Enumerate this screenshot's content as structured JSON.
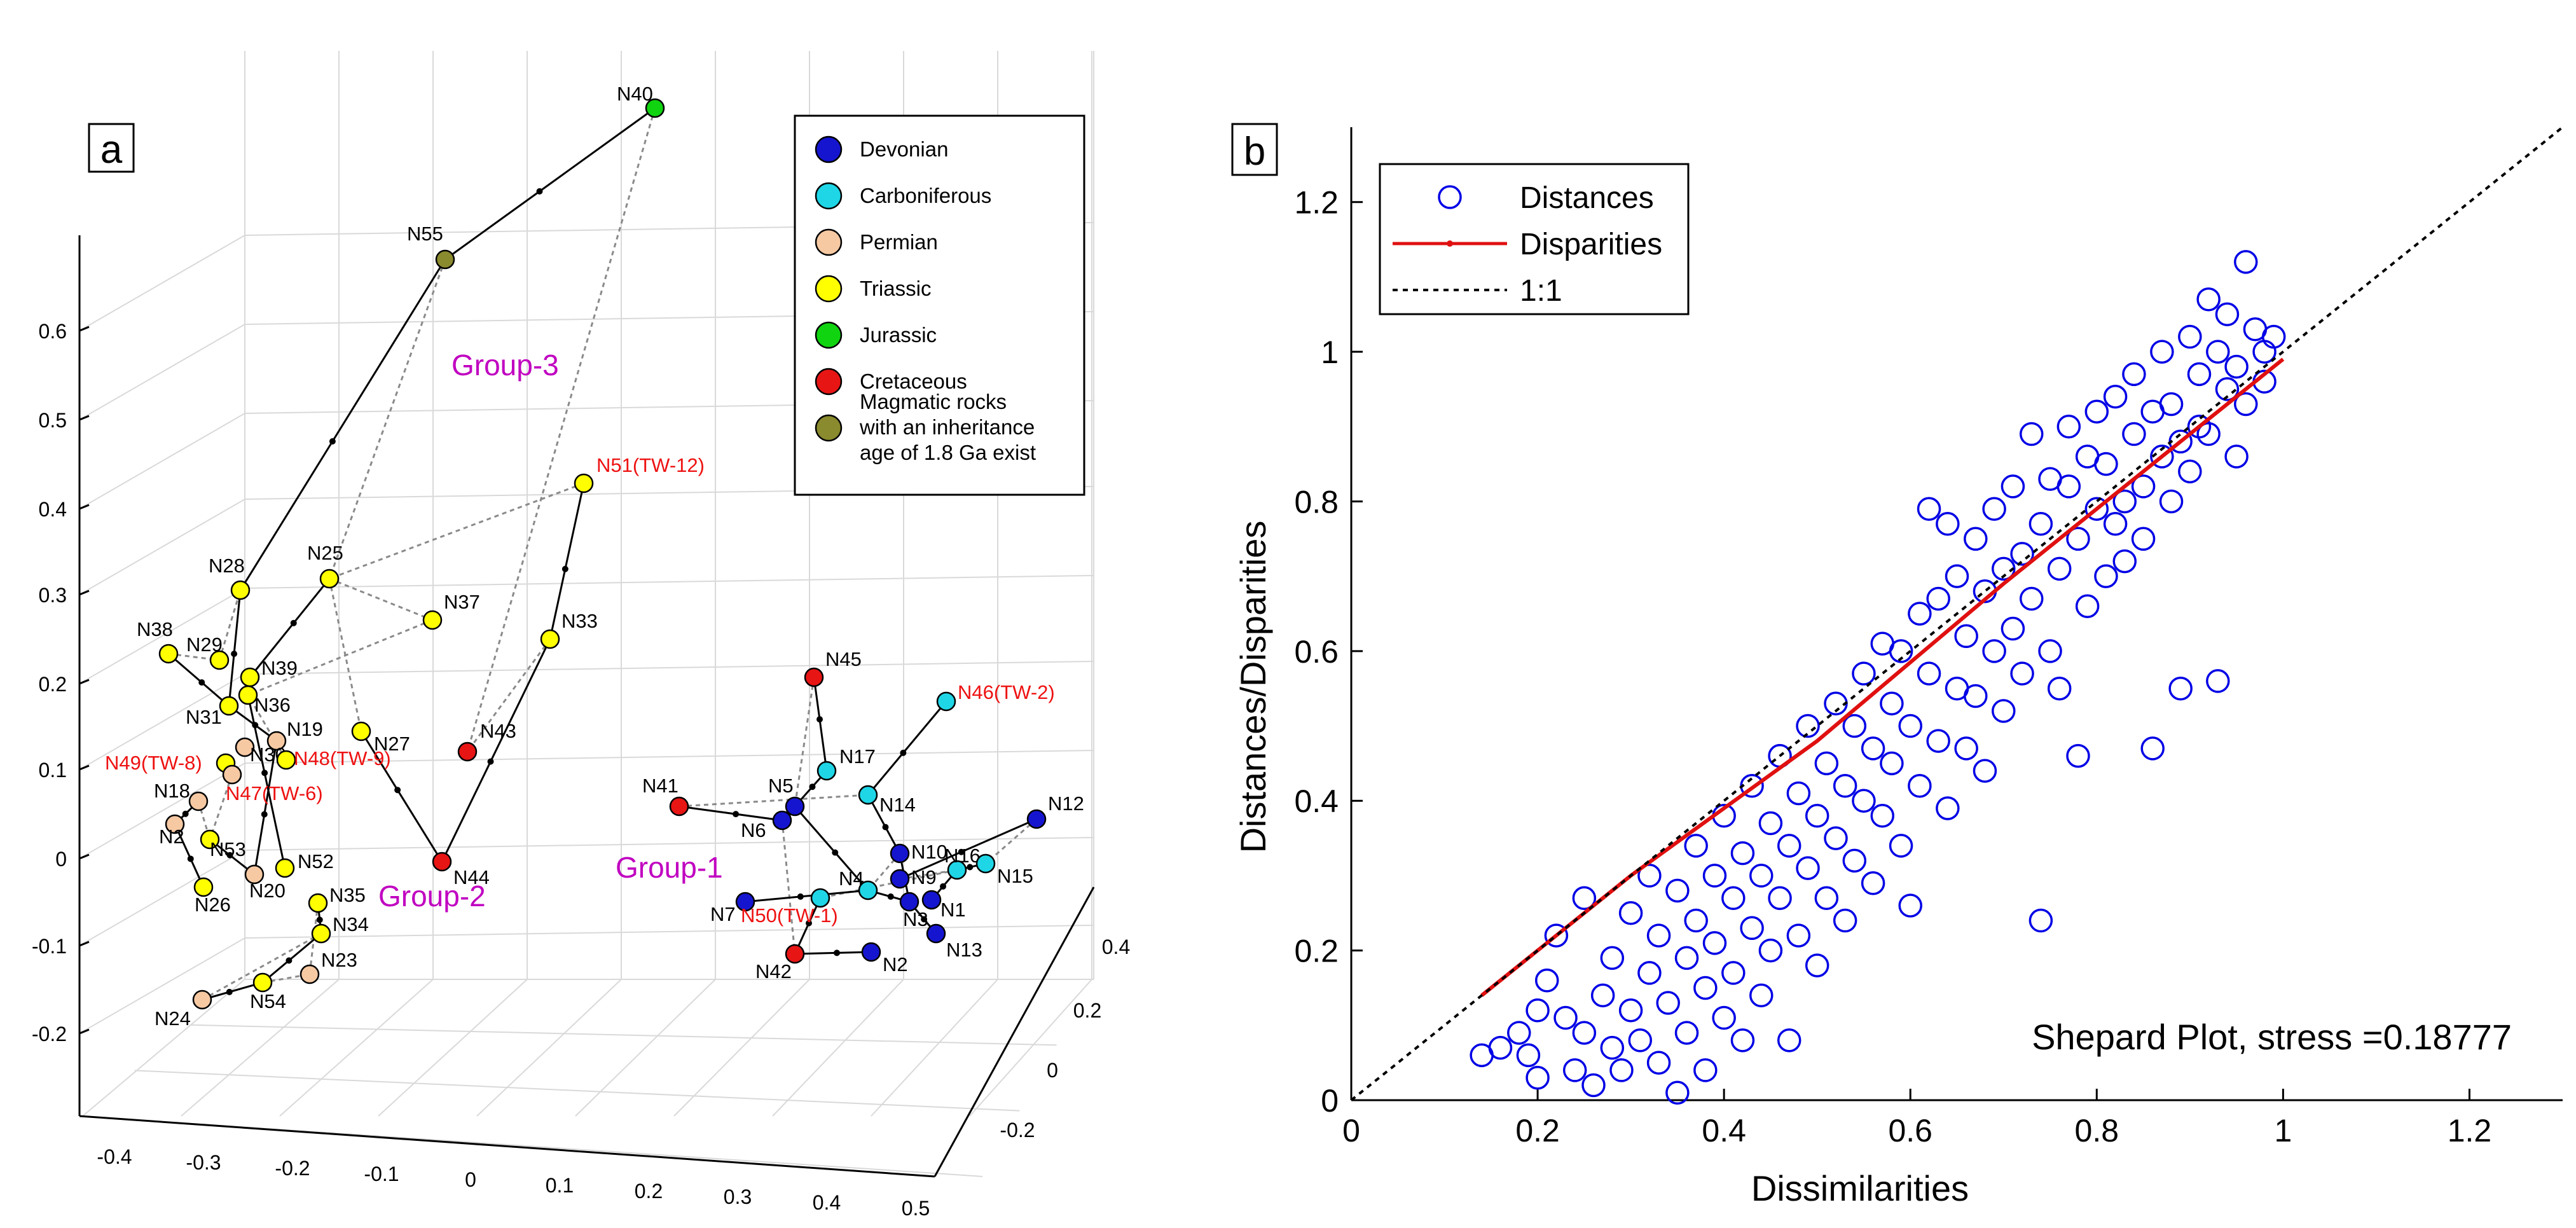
{
  "panel_a": {
    "label": "a",
    "chart_type": "3d-network-scatter",
    "z_ticks": [
      "0.6",
      "0.5",
      "0.4",
      "0.3",
      "0.2",
      "0.1",
      "0",
      "-0.1",
      "-0.2"
    ],
    "x_ticks": [
      "-0.4",
      "-0.3",
      "-0.2",
      "-0.1",
      "0",
      "0.1",
      "0.2",
      "0.3",
      "0.4",
      "0.5"
    ],
    "y_ticks": [
      "-0.2",
      "0",
      "0.2",
      "0.4"
    ],
    "legend": [
      {
        "name": "Devonian",
        "color": "#1515d0"
      },
      {
        "name": "Carboniferous",
        "color": "#1fd6e6"
      },
      {
        "name": "Permian",
        "color": "#f6c9a3"
      },
      {
        "name": "Triassic",
        "color": "#ffff00"
      },
      {
        "name": "Jurassic",
        "color": "#11d411"
      },
      {
        "name": "Cretaceous",
        "color": "#e81515"
      },
      {
        "name": "Magmatic rocks with an inheritance age of 1.8 Ga exist",
        "lines": [
          "Magmatic rocks",
          "with an inheritance",
          "age of 1.8 Ga exist"
        ],
        "color": "#8a8a2e"
      }
    ],
    "groups": [
      {
        "name": "Group-3",
        "color": "#c000c0"
      },
      {
        "name": "Group-2",
        "color": "#c000c0"
      },
      {
        "name": "Group-1",
        "color": "#c000c0"
      }
    ],
    "nodes": [
      {
        "id": "N40",
        "period": "Jurassic"
      },
      {
        "id": "N55",
        "period": "Magmatic"
      },
      {
        "id": "N51(TW-12)",
        "period": "Triassic",
        "highlight": true
      },
      {
        "id": "N25",
        "period": "Triassic"
      },
      {
        "id": "N37",
        "period": "Triassic"
      },
      {
        "id": "N33",
        "period": "Triassic"
      },
      {
        "id": "N28",
        "period": "Triassic"
      },
      {
        "id": "N38",
        "period": "Triassic"
      },
      {
        "id": "N29",
        "period": "Triassic"
      },
      {
        "id": "N39",
        "period": "Triassic"
      },
      {
        "id": "N36",
        "period": "Triassic"
      },
      {
        "id": "N31",
        "period": "Triassic"
      },
      {
        "id": "N19",
        "period": "Permian"
      },
      {
        "id": "N30",
        "period": "Permian"
      },
      {
        "id": "N48(TW-9)",
        "period": "Triassic",
        "highlight": true
      },
      {
        "id": "N49(TW-8)",
        "period": "Triassic",
        "highlight": true
      },
      {
        "id": "N47(TW-6)",
        "period": "Permian",
        "highlight": true
      },
      {
        "id": "N27",
        "period": "Triassic"
      },
      {
        "id": "N43",
        "period": "Cretaceous"
      },
      {
        "id": "N44",
        "period": "Cretaceous"
      },
      {
        "id": "N18",
        "period": "Permian"
      },
      {
        "id": "N53",
        "period": "Triassic"
      },
      {
        "id": "N2",
        "period": "Permian"
      },
      {
        "id": "N26",
        "period": "Triassic"
      },
      {
        "id": "N20",
        "period": "Permian"
      },
      {
        "id": "N52",
        "period": "Triassic"
      },
      {
        "id": "N35",
        "period": "Triassic"
      },
      {
        "id": "N34",
        "period": "Triassic"
      },
      {
        "id": "N23",
        "period": "Permian"
      },
      {
        "id": "N54",
        "period": "Triassic"
      },
      {
        "id": "N24",
        "period": "Permian"
      },
      {
        "id": "N45",
        "period": "Cretaceous"
      },
      {
        "id": "N46(TW-2)",
        "period": "Carboniferous",
        "highlight": true
      },
      {
        "id": "N17",
        "period": "Carboniferous"
      },
      {
        "id": "N5",
        "period": "Devonian"
      },
      {
        "id": "N41",
        "period": "Cretaceous"
      },
      {
        "id": "N6",
        "period": "Devonian"
      },
      {
        "id": "N14",
        "period": "Carboniferous"
      },
      {
        "id": "N12",
        "period": "Devonian"
      },
      {
        "id": "N10",
        "period": "Devonian"
      },
      {
        "id": "N16",
        "period": "Carboniferous"
      },
      {
        "id": "N9",
        "period": "Devonian"
      },
      {
        "id": "N15",
        "period": "Carboniferous"
      },
      {
        "id": "N4",
        "period": "Carboniferous"
      },
      {
        "id": "N7",
        "period": "Devonian"
      },
      {
        "id": "N50(TW-1)",
        "period": "Carboniferous",
        "highlight": true
      },
      {
        "id": "N3",
        "period": "Devonian"
      },
      {
        "id": "N1",
        "period": "Devonian"
      },
      {
        "id": "N13",
        "period": "Devonian"
      },
      {
        "id": "N42",
        "period": "Cretaceous"
      },
      {
        "id": "N2b",
        "label": "N2",
        "period": "Devonian"
      }
    ],
    "solid_links": [
      [
        "N40",
        "N55"
      ],
      [
        "N55",
        "N28"
      ],
      [
        "N51(TW-12)",
        "N33"
      ],
      [
        "N33",
        "N44"
      ],
      [
        "N44",
        "N27"
      ],
      [
        "N28",
        "N31"
      ],
      [
        "N39",
        "N25"
      ],
      [
        "N38",
        "N31"
      ],
      [
        "N49(TW-8)",
        "N47(TW-6)"
      ],
      [
        "N31",
        "N19"
      ],
      [
        "N19",
        "N20"
      ],
      [
        "N20",
        "N53"
      ],
      [
        "N18",
        "N2"
      ],
      [
        "N2",
        "N26"
      ],
      [
        "N52",
        "N36"
      ],
      [
        "N35",
        "N34"
      ],
      [
        "N34",
        "N54"
      ],
      [
        "N54",
        "N24"
      ],
      [
        "N41",
        "N6"
      ],
      [
        "N6",
        "N5"
      ],
      [
        "N5",
        "N17"
      ],
      [
        "N17",
        "N45"
      ],
      [
        "N5",
        "N4"
      ],
      [
        "N4",
        "N7"
      ],
      [
        "N46(TW-2)",
        "N14"
      ],
      [
        "N14",
        "N10"
      ],
      [
        "N10",
        "N3"
      ],
      [
        "N3",
        "N13"
      ],
      [
        "N12",
        "N9"
      ],
      [
        "N16",
        "N1"
      ],
      [
        "N4",
        "N3"
      ],
      [
        "N42",
        "N50(TW-1)"
      ],
      [
        "N42",
        "N2b"
      ],
      [
        "N15",
        "N16"
      ]
    ],
    "dashed_links": [
      [
        "N40",
        "N43"
      ],
      [
        "N55",
        "N25"
      ],
      [
        "N51(TW-12)",
        "N25"
      ],
      [
        "N25",
        "N37"
      ],
      [
        "N25",
        "N27"
      ],
      [
        "N37",
        "N36"
      ],
      [
        "N33",
        "N43"
      ],
      [
        "N38",
        "N29"
      ],
      [
        "N48(TW-9)",
        "N36"
      ],
      [
        "N47(TW-6)",
        "N53"
      ],
      [
        "N18",
        "N53"
      ],
      [
        "N35",
        "N23"
      ],
      [
        "N54",
        "N23"
      ],
      [
        "N45",
        "N5"
      ],
      [
        "N41",
        "N14"
      ],
      [
        "N6",
        "N42"
      ],
      [
        "N9",
        "N16"
      ],
      [
        "N12",
        "N15"
      ],
      [
        "N10",
        "N4"
      ],
      [
        "N16",
        "N50(TW-1)"
      ],
      [
        "N29",
        "N28"
      ],
      [
        "N24",
        "N34"
      ]
    ]
  },
  "panel_b": {
    "label": "b",
    "annotation": "Shepard Plot, stress =0.18777",
    "legend": [
      {
        "name": "Distances",
        "style": "circle",
        "color": "#0000e6"
      },
      {
        "name": "Disparities",
        "style": "line-marker",
        "color": "#e01010"
      },
      {
        "name": "1:1",
        "style": "dotted",
        "color": "#000000"
      }
    ]
  },
  "chart_data": {
    "type": "scatter",
    "title": "Shepard Plot, stress =0.18777",
    "xlabel": "Dissimilarities",
    "ylabel": "Distances/Disparities",
    "xlim": [
      0,
      1.3
    ],
    "ylim": [
      0,
      1.3
    ],
    "xticks": [
      0,
      0.2,
      0.4,
      0.6,
      0.8,
      1,
      1.2
    ],
    "yticks": [
      0,
      0.2,
      0.4,
      0.6,
      0.8,
      1,
      1.2
    ],
    "stress": 0.18777,
    "series": [
      {
        "name": "Distances",
        "type": "scatter",
        "color": "#0000e6",
        "points": [
          [
            0.14,
            0.06
          ],
          [
            0.16,
            0.07
          ],
          [
            0.18,
            0.09
          ],
          [
            0.19,
            0.06
          ],
          [
            0.2,
            0.12
          ],
          [
            0.2,
            0.03
          ],
          [
            0.21,
            0.16
          ],
          [
            0.22,
            0.22
          ],
          [
            0.23,
            0.11
          ],
          [
            0.24,
            0.04
          ],
          [
            0.25,
            0.27
          ],
          [
            0.25,
            0.09
          ],
          [
            0.26,
            0.02
          ],
          [
            0.27,
            0.14
          ],
          [
            0.28,
            0.07
          ],
          [
            0.28,
            0.19
          ],
          [
            0.29,
            0.04
          ],
          [
            0.3,
            0.12
          ],
          [
            0.3,
            0.25
          ],
          [
            0.31,
            0.08
          ],
          [
            0.32,
            0.17
          ],
          [
            0.32,
            0.3
          ],
          [
            0.33,
            0.05
          ],
          [
            0.33,
            0.22
          ],
          [
            0.34,
            0.13
          ],
          [
            0.35,
            0.01
          ],
          [
            0.35,
            0.28
          ],
          [
            0.36,
            0.19
          ],
          [
            0.36,
            0.09
          ],
          [
            0.37,
            0.34
          ],
          [
            0.37,
            0.24
          ],
          [
            0.38,
            0.15
          ],
          [
            0.38,
            0.04
          ],
          [
            0.39,
            0.3
          ],
          [
            0.39,
            0.21
          ],
          [
            0.4,
            0.11
          ],
          [
            0.4,
            0.38
          ],
          [
            0.41,
            0.27
          ],
          [
            0.41,
            0.17
          ],
          [
            0.42,
            0.33
          ],
          [
            0.42,
            0.08
          ],
          [
            0.43,
            0.23
          ],
          [
            0.43,
            0.42
          ],
          [
            0.44,
            0.3
          ],
          [
            0.44,
            0.14
          ],
          [
            0.45,
            0.37
          ],
          [
            0.45,
            0.2
          ],
          [
            0.46,
            0.46
          ],
          [
            0.46,
            0.27
          ],
          [
            0.47,
            0.08
          ],
          [
            0.47,
            0.34
          ],
          [
            0.48,
            0.41
          ],
          [
            0.48,
            0.22
          ],
          [
            0.49,
            0.5
          ],
          [
            0.49,
            0.31
          ],
          [
            0.5,
            0.38
          ],
          [
            0.5,
            0.18
          ],
          [
            0.51,
            0.45
          ],
          [
            0.51,
            0.27
          ],
          [
            0.52,
            0.53
          ],
          [
            0.52,
            0.35
          ],
          [
            0.53,
            0.42
          ],
          [
            0.53,
            0.24
          ],
          [
            0.54,
            0.5
          ],
          [
            0.54,
            0.32
          ],
          [
            0.55,
            0.57
          ],
          [
            0.55,
            0.4
          ],
          [
            0.56,
            0.47
          ],
          [
            0.56,
            0.29
          ],
          [
            0.57,
            0.61
          ],
          [
            0.57,
            0.38
          ],
          [
            0.58,
            0.53
          ],
          [
            0.58,
            0.45
          ],
          [
            0.59,
            0.34
          ],
          [
            0.59,
            0.6
          ],
          [
            0.6,
            0.5
          ],
          [
            0.6,
            0.26
          ],
          [
            0.61,
            0.65
          ],
          [
            0.61,
            0.42
          ],
          [
            0.62,
            0.57
          ],
          [
            0.62,
            0.79
          ],
          [
            0.63,
            0.48
          ],
          [
            0.63,
            0.67
          ],
          [
            0.64,
            0.39
          ],
          [
            0.64,
            0.77
          ],
          [
            0.65,
            0.55
          ],
          [
            0.65,
            0.7
          ],
          [
            0.66,
            0.47
          ],
          [
            0.66,
            0.62
          ],
          [
            0.67,
            0.75
          ],
          [
            0.67,
            0.54
          ],
          [
            0.68,
            0.68
          ],
          [
            0.68,
            0.44
          ],
          [
            0.69,
            0.6
          ],
          [
            0.69,
            0.79
          ],
          [
            0.7,
            0.71
          ],
          [
            0.7,
            0.52
          ],
          [
            0.71,
            0.63
          ],
          [
            0.71,
            0.82
          ],
          [
            0.72,
            0.73
          ],
          [
            0.72,
            0.57
          ],
          [
            0.73,
            0.67
          ],
          [
            0.73,
            0.89
          ],
          [
            0.74,
            0.24
          ],
          [
            0.74,
            0.77
          ],
          [
            0.75,
            0.6
          ],
          [
            0.75,
            0.83
          ],
          [
            0.76,
            0.71
          ],
          [
            0.76,
            0.55
          ],
          [
            0.77,
            0.82
          ],
          [
            0.77,
            0.9
          ],
          [
            0.78,
            0.46
          ],
          [
            0.78,
            0.75
          ],
          [
            0.79,
            0.66
          ],
          [
            0.79,
            0.86
          ],
          [
            0.8,
            0.79
          ],
          [
            0.8,
            0.92
          ],
          [
            0.81,
            0.7
          ],
          [
            0.81,
            0.85
          ],
          [
            0.82,
            0.77
          ],
          [
            0.82,
            0.94
          ],
          [
            0.83,
            0.8
          ],
          [
            0.83,
            0.72
          ],
          [
            0.84,
            0.89
          ],
          [
            0.84,
            0.97
          ],
          [
            0.85,
            0.82
          ],
          [
            0.85,
            0.75
          ],
          [
            0.86,
            0.47
          ],
          [
            0.86,
            0.92
          ],
          [
            0.87,
            0.86
          ],
          [
            0.87,
            1.0
          ],
          [
            0.88,
            0.8
          ],
          [
            0.88,
            0.93
          ],
          [
            0.89,
            0.55
          ],
          [
            0.89,
            0.88
          ],
          [
            0.9,
            1.02
          ],
          [
            0.9,
            0.84
          ],
          [
            0.91,
            0.97
          ],
          [
            0.91,
            0.9
          ],
          [
            0.92,
            1.07
          ],
          [
            0.92,
            0.89
          ],
          [
            0.93,
            0.56
          ],
          [
            0.93,
            1.0
          ],
          [
            0.94,
            0.95
          ],
          [
            0.94,
            1.05
          ],
          [
            0.95,
            0.86
          ],
          [
            0.95,
            0.98
          ],
          [
            0.96,
            1.12
          ],
          [
            0.96,
            0.93
          ],
          [
            0.97,
            1.03
          ],
          [
            0.98,
            1.0
          ],
          [
            0.98,
            0.96
          ],
          [
            0.99,
            1.02
          ]
        ]
      },
      {
        "name": "Disparities",
        "type": "line",
        "color": "#e01010",
        "points": [
          [
            0.14,
            0.14
          ],
          [
            0.3,
            0.3
          ],
          [
            0.5,
            0.48
          ],
          [
            0.7,
            0.69
          ],
          [
            0.85,
            0.84
          ],
          [
            1.0,
            0.99
          ]
        ]
      },
      {
        "name": "1:1",
        "type": "line",
        "style": "dotted",
        "color": "#000000",
        "points": [
          [
            0,
            0
          ],
          [
            1.3,
            1.3
          ]
        ]
      }
    ]
  }
}
